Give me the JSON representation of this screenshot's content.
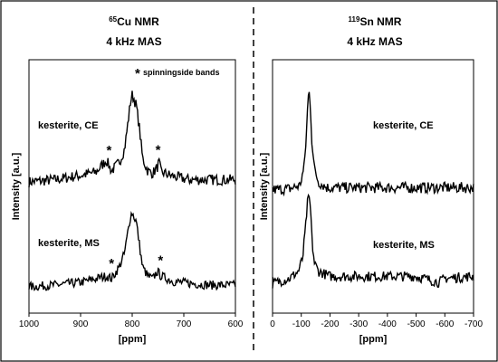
{
  "chart_data": [
    {
      "type": "line",
      "title_nucleus_mass": "65",
      "title_rest": "Cu NMR",
      "subtitle": "4 kHz MAS",
      "ylabel": "Intensity [a.u.]",
      "xlabel": "[ppm]",
      "x_reversed": true,
      "xlim": [
        1000,
        600
      ],
      "xticks": [
        1000,
        900,
        800,
        700,
        600
      ],
      "annotation_marker": "*",
      "annotation_text": "spinningside bands",
      "grid": false,
      "series": [
        {
          "name": "kesterite, CE",
          "label": "kesterite, CE",
          "baseline": 0.2,
          "points": [
            [
              1000,
              0.2
            ],
            [
              950,
              0.22
            ],
            [
              900,
              0.26
            ],
            [
              870,
              0.29
            ],
            [
              850,
              0.4
            ],
            [
              840,
              0.3
            ],
            [
              825,
              0.38
            ],
            [
              815,
              0.5
            ],
            [
              808,
              0.75
            ],
            [
              803,
              0.95
            ],
            [
              800,
              1.0
            ],
            [
              797,
              0.97
            ],
            [
              792,
              0.9
            ],
            [
              786,
              0.7
            ],
            [
              780,
              0.42
            ],
            [
              770,
              0.3
            ],
            [
              760,
              0.28
            ],
            [
              752,
              0.33
            ],
            [
              748,
              0.38
            ],
            [
              744,
              0.29
            ],
            [
              720,
              0.25
            ],
            [
              690,
              0.22
            ],
            [
              650,
              0.22
            ],
            [
              600,
              0.22
            ]
          ],
          "sidebands": [
            845,
            750
          ]
        },
        {
          "name": "kesterite, MS",
          "label": "kesterite, MS",
          "baseline": 0.18,
          "points": [
            [
              1000,
              0.18
            ],
            [
              950,
              0.2
            ],
            [
              900,
              0.23
            ],
            [
              870,
              0.27
            ],
            [
              850,
              0.3
            ],
            [
              840,
              0.27
            ],
            [
              825,
              0.4
            ],
            [
              815,
              0.55
            ],
            [
              808,
              0.8
            ],
            [
              803,
              0.97
            ],
            [
              800,
              1.0
            ],
            [
              797,
              0.96
            ],
            [
              792,
              0.9
            ],
            [
              786,
              0.65
            ],
            [
              780,
              0.4
            ],
            [
              770,
              0.3
            ],
            [
              760,
              0.27
            ],
            [
              752,
              0.35
            ],
            [
              748,
              0.33
            ],
            [
              744,
              0.3
            ],
            [
              720,
              0.24
            ],
            [
              690,
              0.22
            ],
            [
              650,
              0.2
            ],
            [
              600,
              0.2
            ]
          ],
          "sidebands": [
            840,
            745
          ]
        }
      ]
    },
    {
      "type": "line",
      "title_nucleus_mass": "119",
      "title_rest": "Sn NMR",
      "subtitle": "4 kHz MAS",
      "ylabel": "Intensity [a.u.]",
      "xlabel": "[ppm]",
      "x_reversed": true,
      "xlim": [
        0,
        -700
      ],
      "xticks": [
        0,
        -100,
        -200,
        -300,
        -400,
        -500,
        -600,
        -700
      ],
      "grid": false,
      "series": [
        {
          "name": "kesterite, CE",
          "label": "kesterite, CE",
          "baseline": 0.12,
          "points": [
            [
              0,
              0.1
            ],
            [
              -60,
              0.11
            ],
            [
              -95,
              0.14
            ],
            [
              -110,
              0.3
            ],
            [
              -118,
              0.6
            ],
            [
              -123,
              0.9
            ],
            [
              -127,
              1.0
            ],
            [
              -131,
              0.9
            ],
            [
              -137,
              0.55
            ],
            [
              -145,
              0.3
            ],
            [
              -160,
              0.17
            ],
            [
              -190,
              0.12
            ],
            [
              -250,
              0.12
            ],
            [
              -400,
              0.12
            ],
            [
              -550,
              0.12
            ],
            [
              -700,
              0.12
            ]
          ]
        },
        {
          "name": "kesterite, MS",
          "label": "kesterite, MS",
          "baseline": 0.18,
          "points": [
            [
              0,
              0.15
            ],
            [
              -60,
              0.2
            ],
            [
              -90,
              0.27
            ],
            [
              -105,
              0.4
            ],
            [
              -115,
              0.7
            ],
            [
              -122,
              0.95
            ],
            [
              -127,
              1.0
            ],
            [
              -132,
              0.9
            ],
            [
              -138,
              0.55
            ],
            [
              -146,
              0.35
            ],
            [
              -160,
              0.27
            ],
            [
              -200,
              0.22
            ],
            [
              -300,
              0.22
            ],
            [
              -500,
              0.22
            ],
            [
              -580,
              0.16
            ],
            [
              -600,
              0.2
            ],
            [
              -700,
              0.22
            ]
          ]
        }
      ]
    }
  ]
}
